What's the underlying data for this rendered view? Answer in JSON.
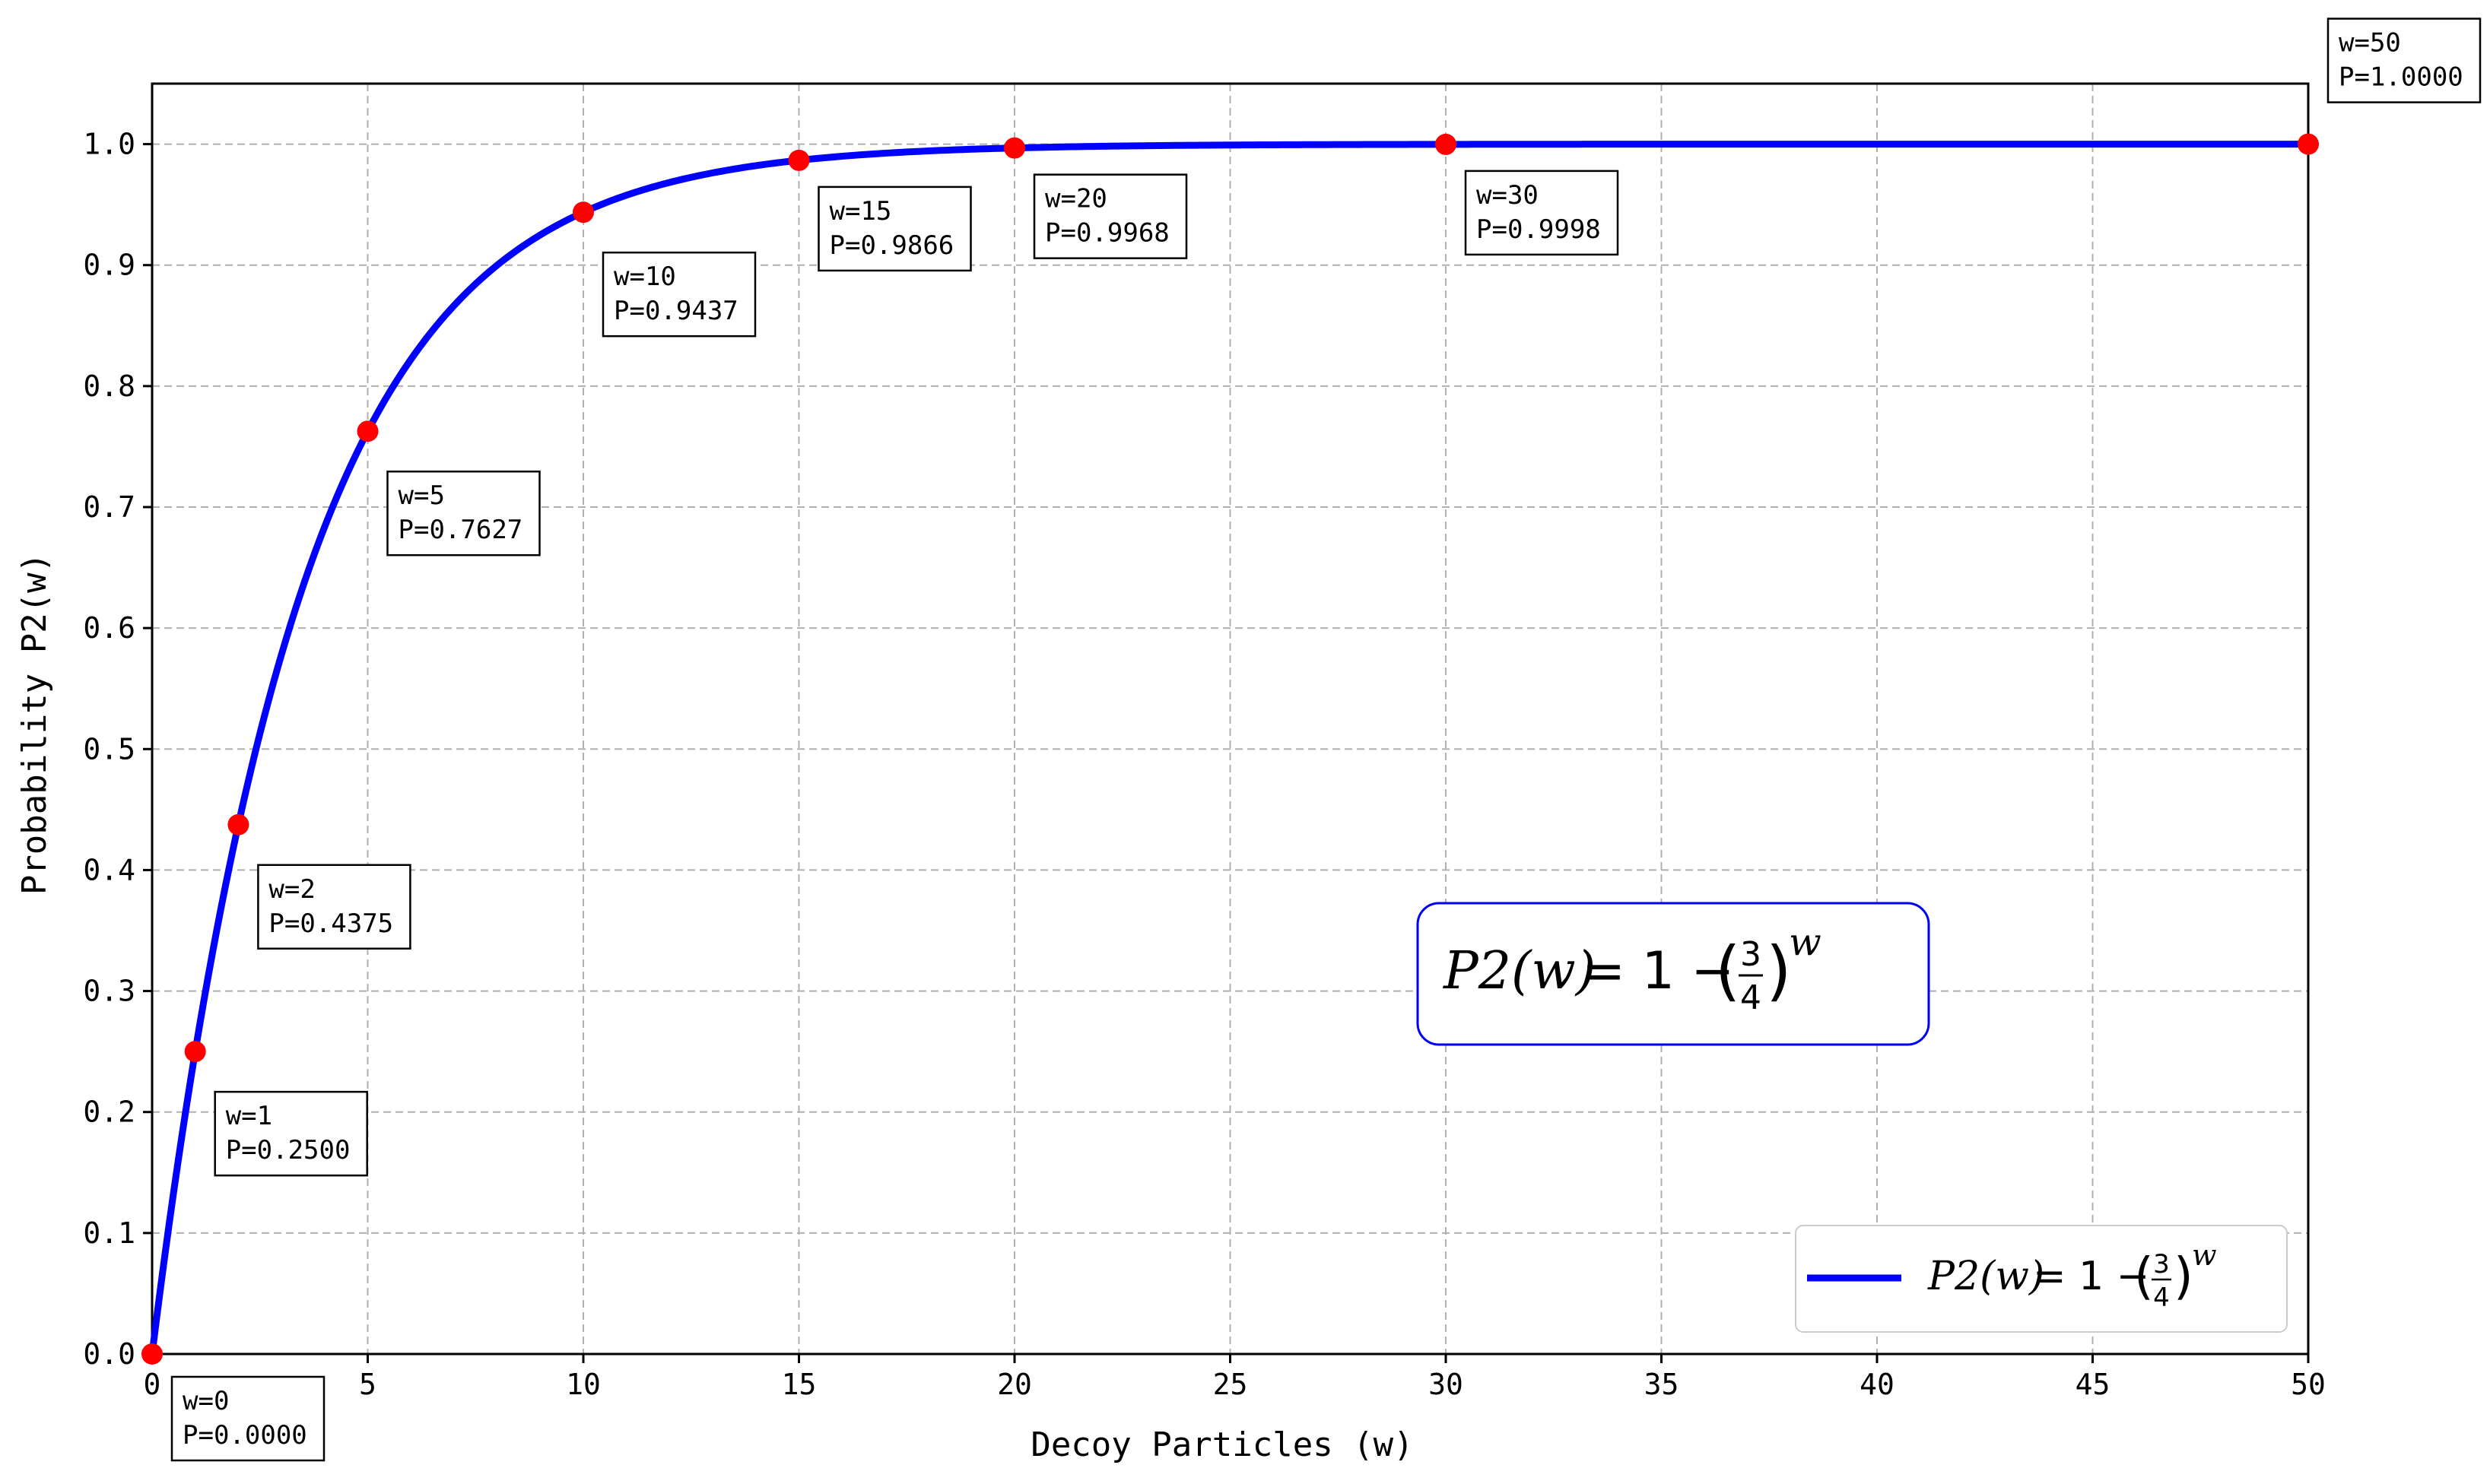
{
  "chart_data": {
    "type": "line",
    "title": "",
    "xlabel": "Decoy Particles (w)",
    "ylabel": "Probability P2(w)",
    "xlim": [
      0,
      50
    ],
    "ylim": [
      0,
      1.05
    ],
    "x_ticks": [
      0,
      5,
      10,
      15,
      20,
      25,
      30,
      35,
      40,
      45,
      50
    ],
    "y_ticks": [
      0.0,
      0.1,
      0.2,
      0.3,
      0.4,
      0.5,
      0.6,
      0.7,
      0.8,
      0.9,
      1.0
    ],
    "x_tick_labels": [
      "0",
      "5",
      "10",
      "15",
      "20",
      "25",
      "30",
      "35",
      "40",
      "45",
      "50"
    ],
    "y_tick_labels": [
      "0.0",
      "0.1",
      "0.2",
      "0.3",
      "0.4",
      "0.5",
      "0.6",
      "0.7",
      "0.8",
      "0.9",
      "1.0"
    ],
    "grid": true,
    "legend_position": "bottom-right",
    "series": [
      {
        "name": "P2(w) = 1 − (3/4)^w",
        "color": "#0000ff",
        "function": "1 - 0.75^w",
        "x_range": [
          0,
          50
        ]
      }
    ],
    "highlighted_points": {
      "color": "#ff0000",
      "points": [
        {
          "w": 0,
          "p": 0.0,
          "label_w": "w=0",
          "label_p": "P=0.0000"
        },
        {
          "w": 1,
          "p": 0.25,
          "label_w": "w=1",
          "label_p": "P=0.2500"
        },
        {
          "w": 2,
          "p": 0.4375,
          "label_w": "w=2",
          "label_p": "P=0.4375"
        },
        {
          "w": 5,
          "p": 0.7627,
          "label_w": "w=5",
          "label_p": "P=0.7627"
        },
        {
          "w": 10,
          "p": 0.9437,
          "label_w": "w=10",
          "label_p": "P=0.9437"
        },
        {
          "w": 15,
          "p": 0.9866,
          "label_w": "w=15",
          "label_p": "P=0.9866"
        },
        {
          "w": 20,
          "p": 0.9968,
          "label_w": "w=20",
          "label_p": "P=0.9968"
        },
        {
          "w": 30,
          "p": 0.9998,
          "label_w": "w=30",
          "label_p": "P=0.9998"
        },
        {
          "w": 50,
          "p": 1.0,
          "label_w": "w=50",
          "label_p": "P=1.0000"
        }
      ]
    },
    "formula_box": {
      "lhs": "P2(w)",
      "eq": "= 1 −",
      "num": "3",
      "den": "4",
      "exp": "w",
      "border_color": "#0000ff"
    }
  }
}
